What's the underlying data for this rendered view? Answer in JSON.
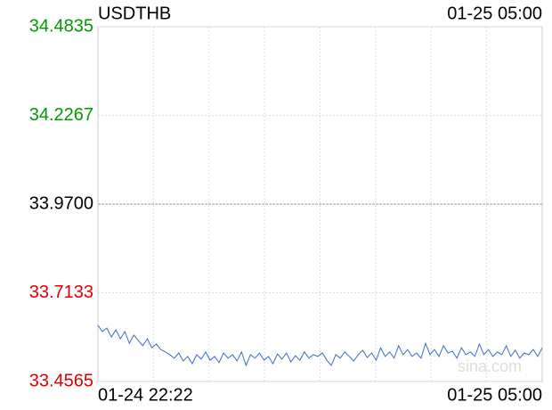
{
  "chart_data": {
    "type": "line",
    "title": "USDTHB",
    "timestamp": "01-25 05:00",
    "watermark": "sina.com",
    "categories": [
      "01-24 22:22",
      null,
      null,
      null,
      null,
      null,
      null,
      null,
      null,
      null,
      null,
      null,
      null,
      null,
      null,
      null,
      null,
      null,
      null,
      null,
      null,
      null,
      null,
      null,
      null,
      null,
      null,
      null,
      null,
      null,
      null,
      null,
      null,
      null,
      null,
      null,
      null,
      null,
      null,
      null,
      null,
      null,
      null,
      null,
      null,
      null,
      null,
      null,
      null,
      null,
      null,
      null,
      null,
      null,
      null,
      null,
      null,
      null,
      null,
      null,
      null,
      null,
      null,
      null,
      null,
      null,
      null,
      null,
      null,
      null,
      null,
      null,
      null,
      null,
      null,
      null,
      null,
      null,
      null,
      null,
      null,
      null,
      null,
      null,
      null,
      null,
      null,
      null,
      null,
      null,
      null,
      null,
      null,
      null,
      null,
      null,
      null,
      null,
      null,
      "01-25 05:00"
    ],
    "values": [
      33.619,
      33.601,
      33.611,
      33.585,
      33.606,
      33.58,
      33.601,
      33.567,
      33.591,
      33.575,
      33.56,
      33.58,
      33.554,
      33.565,
      33.549,
      33.542,
      33.534,
      33.524,
      33.539,
      33.516,
      33.529,
      33.508,
      33.534,
      33.521,
      33.542,
      33.518,
      33.529,
      33.511,
      33.539,
      33.524,
      33.534,
      33.516,
      33.542,
      33.503,
      33.534,
      33.524,
      33.539,
      33.518,
      33.529,
      33.508,
      33.536,
      33.521,
      33.539,
      33.513,
      33.531,
      33.518,
      33.542,
      33.524,
      33.534,
      33.529,
      33.539,
      33.518,
      33.503,
      33.534,
      33.524,
      33.542,
      33.529,
      33.516,
      33.534,
      33.547,
      33.526,
      33.539,
      33.518,
      33.554,
      33.529,
      33.542,
      33.524,
      33.56,
      33.534,
      33.549,
      33.529,
      33.539,
      33.524,
      33.567,
      33.534,
      33.549,
      33.529,
      33.56,
      33.539,
      33.544,
      33.524,
      33.554,
      33.534,
      33.542,
      33.529,
      33.565,
      33.534,
      33.549,
      33.529,
      33.542,
      33.534,
      33.56,
      33.529,
      33.547,
      33.524,
      33.539,
      33.534,
      33.549,
      33.529,
      33.554
    ],
    "color": "#3a6fc4",
    "ylim": [
      33.4565,
      34.4835
    ],
    "yticks": [
      34.4835,
      34.2267,
      {
        "value": 33.97,
        "label": "33.9700"
      },
      33.7133,
      33.4565
    ],
    "ytick_colors": [
      "#009900",
      "#009900",
      "#000000",
      "#e00000",
      "#e00000"
    ],
    "grid": true
  }
}
